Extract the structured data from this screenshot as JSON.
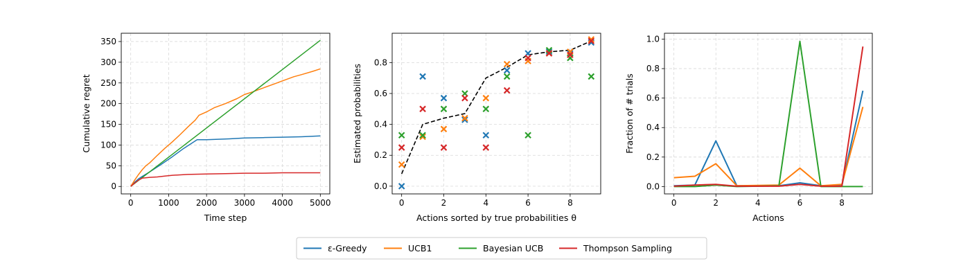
{
  "chart_data": [
    {
      "type": "line",
      "xlabel": "Time step",
      "ylabel": "Cumulative regret",
      "xlim": [
        -250,
        5250
      ],
      "ylim": [
        -18,
        370
      ],
      "xticks": [
        0,
        1000,
        2000,
        3000,
        4000,
        5000
      ],
      "yticks": [
        0,
        50,
        100,
        150,
        200,
        250,
        300,
        350
      ],
      "grid": true,
      "series": [
        {
          "name": "ε-Greedy",
          "color": "#1f77b4",
          "x": [
            0,
            100,
            200,
            300,
            500,
            800,
            1100,
            1400,
            1750,
            2000,
            2300,
            2600,
            3000,
            3500,
            4000,
            4500,
            5000
          ],
          "y": [
            0,
            10,
            18,
            24,
            35,
            53,
            72,
            92,
            113,
            113,
            114,
            115,
            117,
            118,
            119,
            120,
            122
          ]
        },
        {
          "name": "UCB1",
          "color": "#ff7f0e",
          "x": [
            0,
            100,
            200,
            300,
            400,
            500,
            700,
            900,
            1100,
            1300,
            1500,
            1700,
            1800,
            2000,
            2200,
            2500,
            2800,
            3000,
            3200,
            3500,
            3800,
            4000,
            4300,
            4500,
            4800,
            5000
          ],
          "y": [
            0,
            15,
            28,
            40,
            50,
            57,
            75,
            92,
            108,
            125,
            143,
            160,
            172,
            180,
            190,
            200,
            212,
            222,
            228,
            238,
            248,
            255,
            265,
            270,
            278,
            284
          ]
        },
        {
          "name": "Bayesian UCB",
          "color": "#2ca02c",
          "x": [
            0,
            5000
          ],
          "y": [
            0,
            353
          ]
        },
        {
          "name": "Thompson Sampling",
          "color": "#d62728",
          "x": [
            0,
            100,
            200,
            300,
            500,
            700,
            900,
            1100,
            1500,
            2000,
            2500,
            3000,
            3500,
            4000,
            4500,
            5000
          ],
          "y": [
            0,
            8,
            15,
            20,
            22,
            23,
            25,
            27,
            29,
            30,
            31,
            32,
            32,
            33,
            33,
            33
          ]
        }
      ]
    },
    {
      "type": "scatter",
      "xlabel": "Actions sorted by true probabilities θ",
      "ylabel": "Estimated probabilities",
      "xlim": [
        -0.45,
        9.45
      ],
      "ylim": [
        -0.05,
        0.99
      ],
      "xticks": [
        0,
        2,
        4,
        6,
        8
      ],
      "yticks": [
        0.0,
        0.2,
        0.4,
        0.6,
        0.8
      ],
      "grid": true,
      "true_probabilities": {
        "x": [
          0,
          1,
          2,
          3,
          4,
          5,
          6,
          7,
          8,
          9
        ],
        "y": [
          0.08,
          0.4,
          0.44,
          0.47,
          0.7,
          0.77,
          0.85,
          0.87,
          0.88,
          0.94
        ],
        "style": "dashed",
        "color": "#000000"
      },
      "series": [
        {
          "name": "ε-Greedy",
          "color": "#1f77b4",
          "x": [
            0,
            1,
            2,
            3,
            4,
            5,
            6,
            7,
            8,
            9
          ],
          "y": [
            0.0,
            0.71,
            0.57,
            0.43,
            0.33,
            0.75,
            0.86,
            0.87,
            0.86,
            0.93
          ]
        },
        {
          "name": "UCB1",
          "color": "#ff7f0e",
          "x": [
            0,
            1,
            2,
            3,
            4,
            5,
            6,
            7,
            8,
            9
          ],
          "y": [
            0.14,
            0.32,
            0.37,
            0.44,
            0.57,
            0.79,
            0.81,
            0.86,
            0.87,
            0.95
          ]
        },
        {
          "name": "Bayesian UCB",
          "color": "#2ca02c",
          "x": [
            0,
            1,
            2,
            3,
            4,
            5,
            6,
            7,
            8,
            9
          ],
          "y": [
            0.33,
            0.33,
            0.5,
            0.6,
            0.5,
            0.71,
            0.33,
            0.88,
            0.83,
            0.71
          ]
        },
        {
          "name": "Thompson Sampling",
          "color": "#d62728",
          "x": [
            0,
            1,
            2,
            3,
            4,
            5,
            6,
            7,
            8,
            9
          ],
          "y": [
            0.25,
            0.5,
            0.25,
            0.57,
            0.25,
            0.62,
            0.83,
            0.86,
            0.85,
            0.94
          ]
        }
      ]
    },
    {
      "type": "line",
      "xlabel": "Actions",
      "ylabel": "Fraction of # trials",
      "xlim": [
        -0.45,
        9.45
      ],
      "ylim": [
        -0.05,
        1.04
      ],
      "xticks": [
        0,
        2,
        4,
        6,
        8
      ],
      "yticks": [
        0.0,
        0.2,
        0.4,
        0.6,
        0.8,
        1.0
      ],
      "grid": true,
      "series": [
        {
          "name": "ε-Greedy",
          "color": "#1f77b4",
          "x": [
            0,
            1,
            2,
            3,
            4,
            5,
            6,
            7,
            8,
            9
          ],
          "y": [
            0.005,
            0.01,
            0.31,
            0.005,
            0.005,
            0.005,
            0.025,
            0.005,
            0.005,
            0.65
          ]
        },
        {
          "name": "UCB1",
          "color": "#ff7f0e",
          "x": [
            0,
            1,
            2,
            3,
            4,
            5,
            6,
            7,
            8,
            9
          ],
          "y": [
            0.06,
            0.07,
            0.155,
            0.005,
            0.008,
            0.01,
            0.125,
            0.005,
            0.015,
            0.54
          ]
        },
        {
          "name": "Bayesian UCB",
          "color": "#2ca02c",
          "x": [
            0,
            1,
            2,
            3,
            4,
            5,
            6,
            7,
            8,
            9
          ],
          "y": [
            0.0,
            0.0,
            0.01,
            0.0,
            0.002,
            0.005,
            0.985,
            0.0,
            0.0,
            0.0
          ]
        },
        {
          "name": "Thompson Sampling",
          "color": "#d62728",
          "x": [
            0,
            1,
            2,
            3,
            4,
            5,
            6,
            7,
            8,
            9
          ],
          "y": [
            0.002,
            0.01,
            0.015,
            0.002,
            0.002,
            0.002,
            0.015,
            0.002,
            0.002,
            0.95
          ]
        }
      ]
    }
  ],
  "legend": {
    "placement": "bottom-center",
    "entries": [
      {
        "label": "ε-Greedy",
        "color": "#1f77b4"
      },
      {
        "label": "UCB1",
        "color": "#ff7f0e"
      },
      {
        "label": "Bayesian UCB",
        "color": "#2ca02c"
      },
      {
        "label": "Thompson Sampling",
        "color": "#d62728"
      }
    ]
  }
}
